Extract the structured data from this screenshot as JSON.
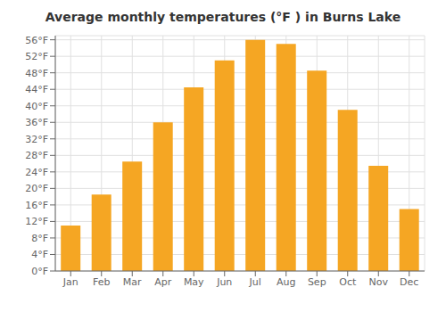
{
  "chart_data": {
    "type": "bar",
    "title": "Average monthly temperatures (°F ) in Burns Lake",
    "categories": [
      "Jan",
      "Feb",
      "Mar",
      "Apr",
      "May",
      "Jun",
      "Jul",
      "Aug",
      "Sep",
      "Oct",
      "Nov",
      "Dec"
    ],
    "values": [
      11,
      18.5,
      26.5,
      36,
      44.5,
      51,
      56,
      55,
      48.5,
      39,
      25.5,
      15
    ],
    "color": "#F5A623",
    "ylim": [
      0,
      57
    ],
    "yticks": [
      {
        "value": 0,
        "label": "0°F"
      },
      {
        "value": 4,
        "label": "4°F"
      },
      {
        "value": 8,
        "label": "8°F"
      },
      {
        "value": 12,
        "label": "12°F"
      },
      {
        "value": 16,
        "label": "16°F"
      },
      {
        "value": 20,
        "label": "20°F"
      },
      {
        "value": 24,
        "label": "24°F"
      },
      {
        "value": 28,
        "label": "28°F"
      },
      {
        "value": 32,
        "label": "32°F"
      },
      {
        "value": 36,
        "label": "36°F"
      },
      {
        "value": 40,
        "label": "40°F"
      },
      {
        "value": 44,
        "label": "44°F"
      },
      {
        "value": 48,
        "label": "48°F"
      },
      {
        "value": 52,
        "label": "52°F"
      },
      {
        "value": 56,
        "label": "56°F"
      }
    ],
    "grid": true
  }
}
